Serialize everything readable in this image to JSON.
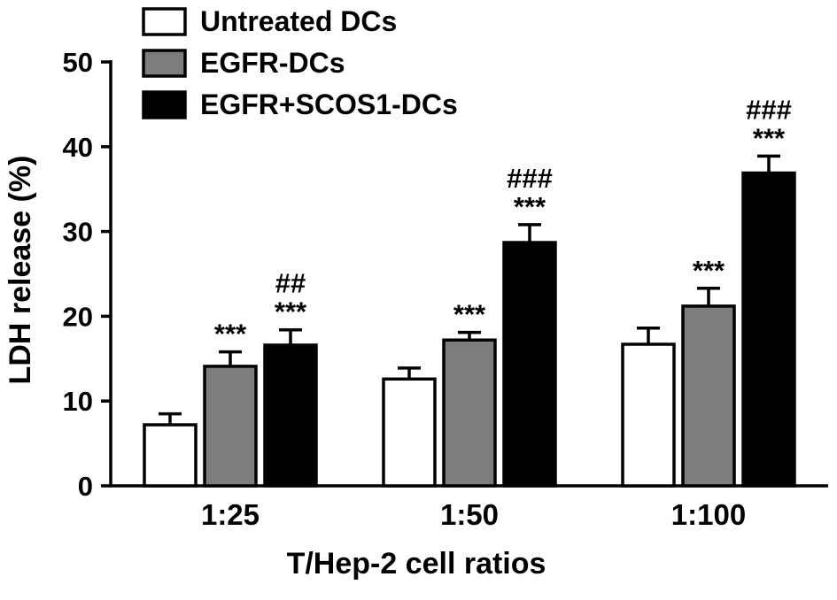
{
  "chart_data": {
    "type": "bar",
    "title": "",
    "xlabel": "T/Hep-2 cell  ratios",
    "ylabel": "LDH release (%)",
    "ylim": [
      0,
      50
    ],
    "yticks": [
      0,
      10,
      20,
      30,
      40,
      50
    ],
    "grid": false,
    "legend_position": "top-left",
    "categories": [
      "1:25",
      "1:50",
      "1:100"
    ],
    "series": [
      {
        "name": "Untreated DCs",
        "color": "#ffffff",
        "values": [
          7.2,
          12.6,
          16.7
        ],
        "errors": [
          1.3,
          1.3,
          1.9
        ]
      },
      {
        "name": "EGFR-DCs",
        "color": "#7d7d7d",
        "values": [
          14.1,
          17.2,
          21.2
        ],
        "errors": [
          1.7,
          0.9,
          2.1
        ]
      },
      {
        "name": "EGFR+SCOS1-DCs",
        "color": "#000000",
        "values": [
          16.6,
          28.7,
          36.9
        ],
        "errors": [
          1.8,
          2.1,
          2.0
        ]
      }
    ],
    "annotations": [
      {
        "category": "1:25",
        "series": "EGFR-DCs",
        "lines": [
          "***"
        ]
      },
      {
        "category": "1:25",
        "series": "EGFR+SCOS1-DCs",
        "lines": [
          "##",
          "***"
        ]
      },
      {
        "category": "1:50",
        "series": "EGFR-DCs",
        "lines": [
          "***"
        ]
      },
      {
        "category": "1:50",
        "series": "EGFR+SCOS1-DCs",
        "lines": [
          "###",
          "***"
        ]
      },
      {
        "category": "1:100",
        "series": "EGFR-DCs",
        "lines": [
          "***"
        ]
      },
      {
        "category": "1:100",
        "series": "EGFR+SCOS1-DCs",
        "lines": [
          "###",
          "***"
        ]
      }
    ],
    "axis_color": "#000000"
  }
}
